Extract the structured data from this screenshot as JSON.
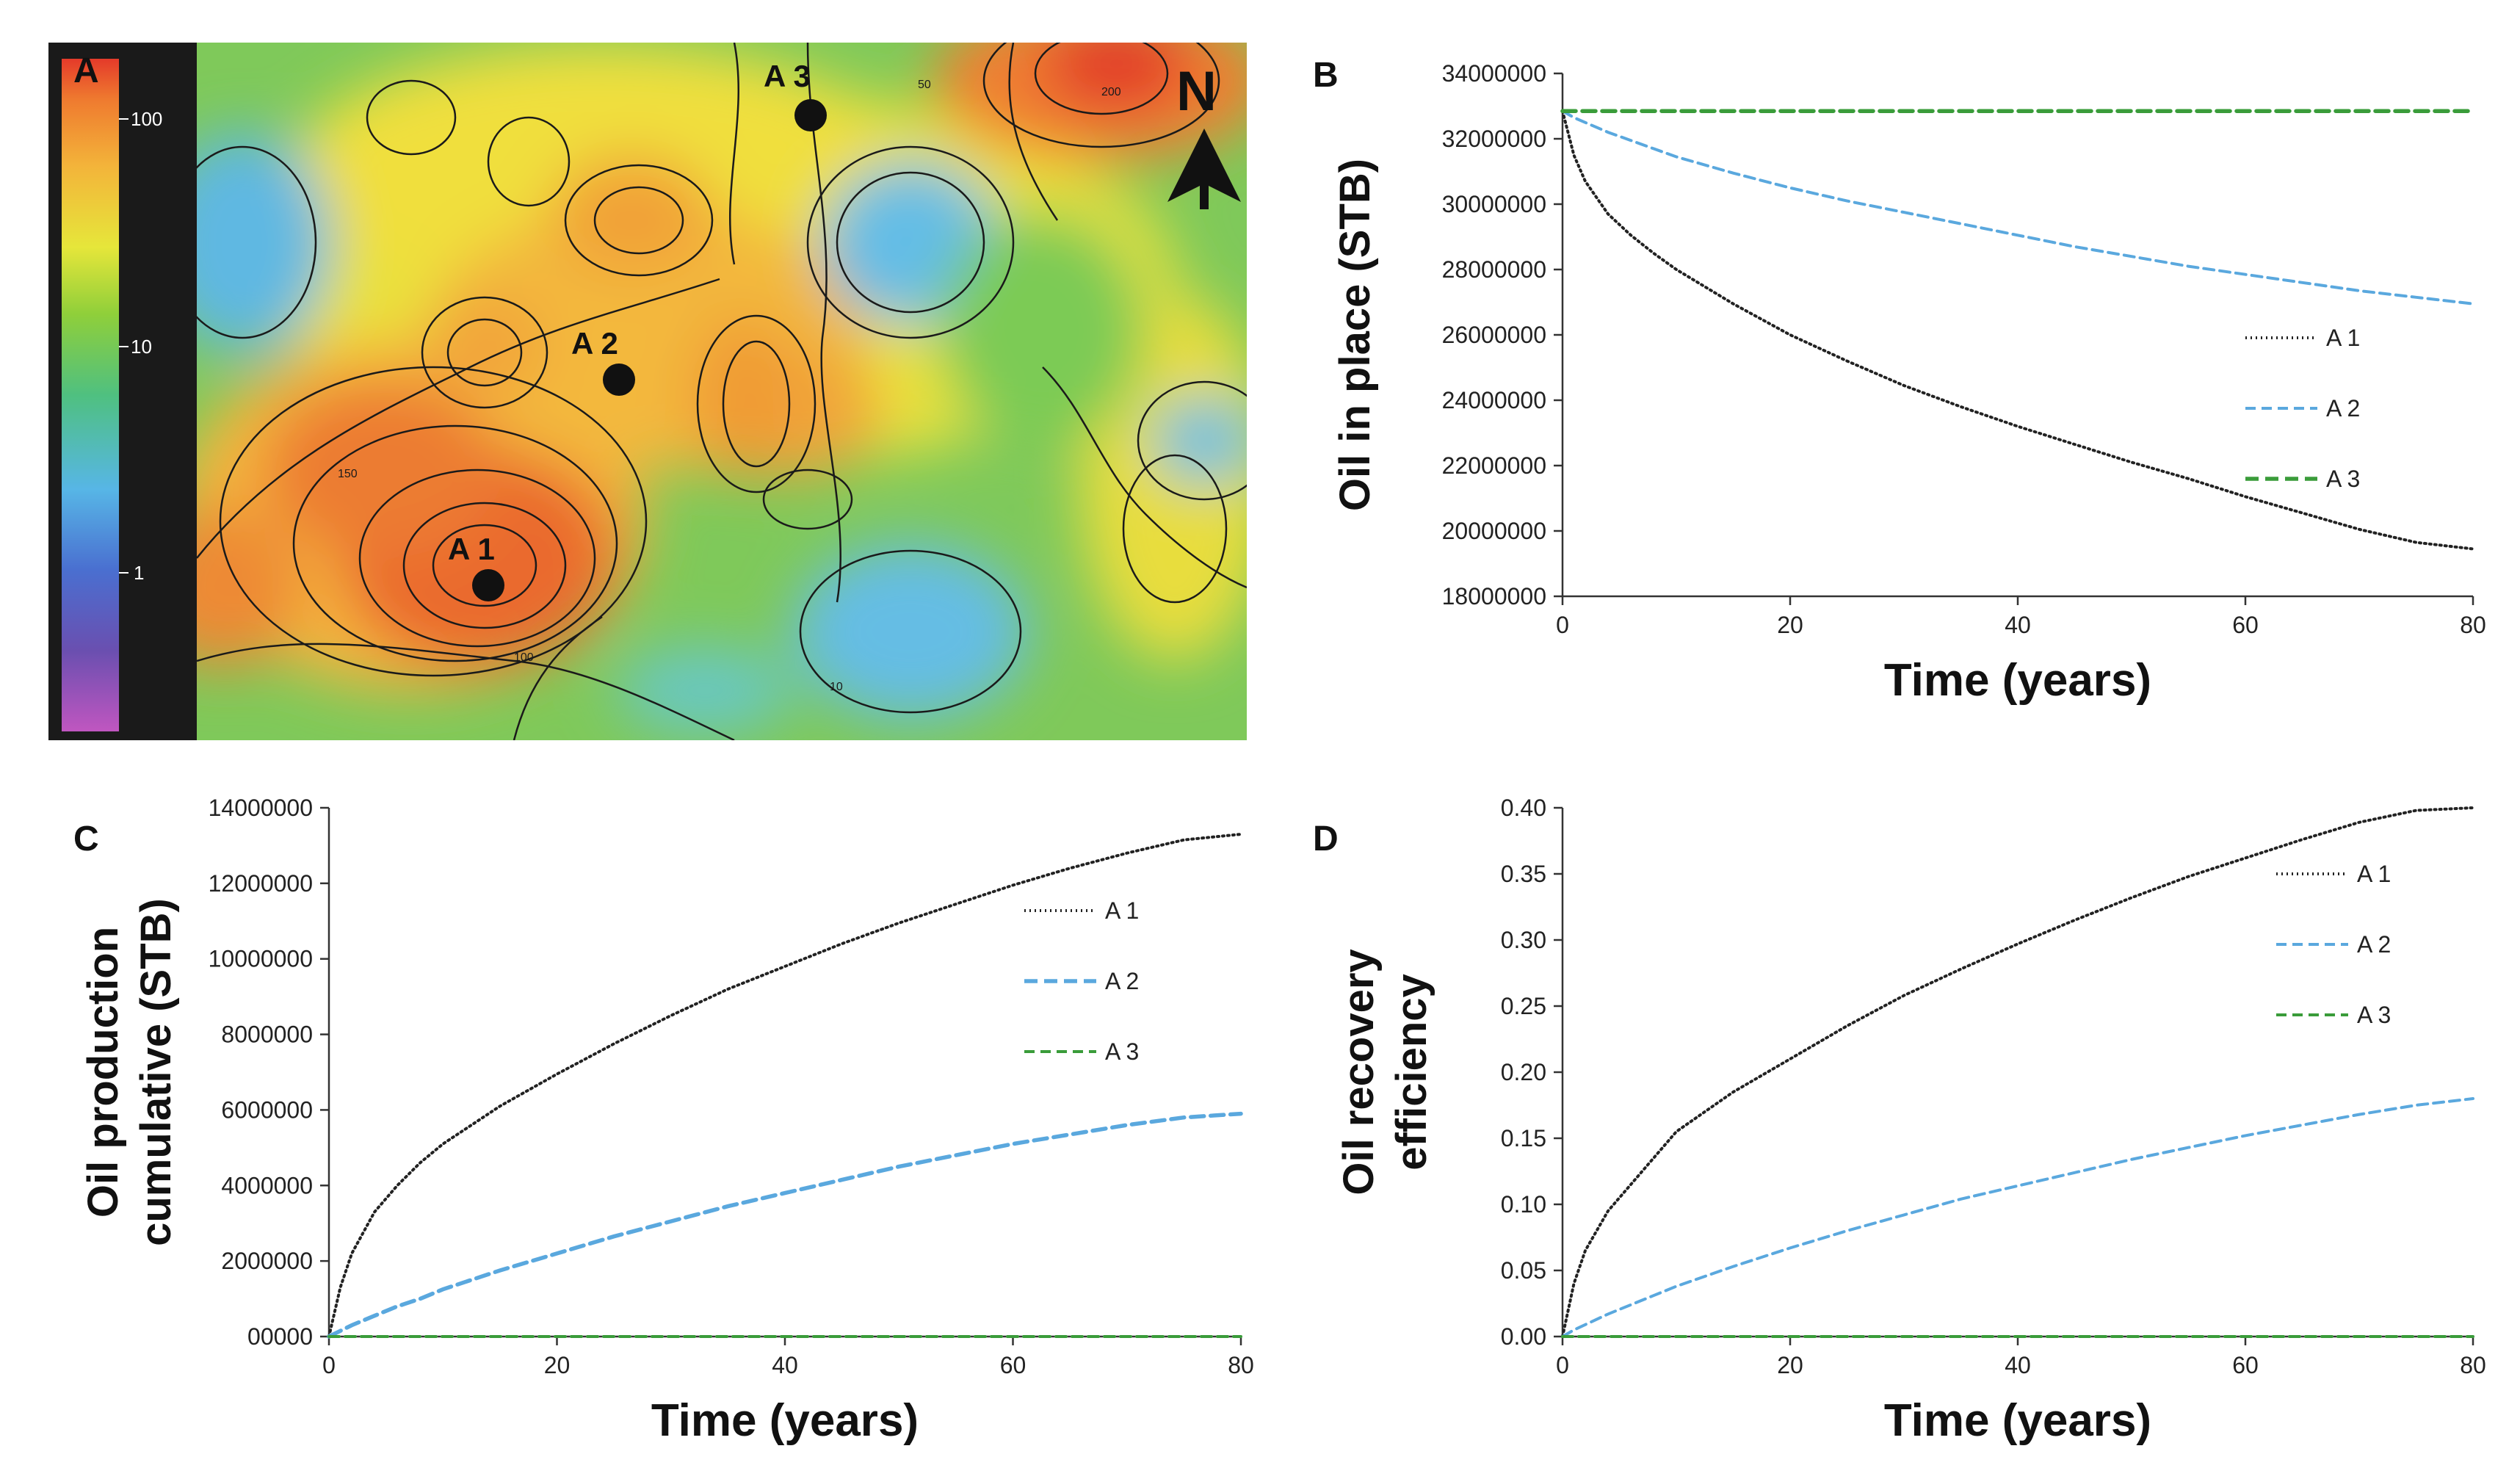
{
  "panels": {
    "a": {
      "letter": "A",
      "north_label": "N",
      "colorbar_ticks": [
        "100",
        "10",
        "1"
      ],
      "contour_labels": [
        "10",
        "50",
        "100",
        "150",
        "200"
      ],
      "wells": [
        {
          "label": "A 1"
        },
        {
          "label": "A 2"
        },
        {
          "label": "A 3"
        }
      ],
      "colors": {
        "frame": "#1a1a1a",
        "well": "#111111"
      }
    }
  },
  "chart_data": [
    {
      "panel": "B",
      "type": "line",
      "xlabel": "Time (years)",
      "ylabel": "Oil in place (STB)",
      "xlim": [
        0,
        80
      ],
      "ylim": [
        18000000,
        34000000
      ],
      "xticks": [
        "0",
        "20",
        "40",
        "60",
        "80"
      ],
      "yticks": [
        "18000000",
        "20000000",
        "22000000",
        "24000000",
        "26000000",
        "28000000",
        "30000000",
        "32000000",
        "34000000"
      ],
      "legend_position": "right",
      "x": [
        0,
        1,
        2,
        4,
        6,
        8,
        10,
        15,
        20,
        25,
        30,
        35,
        40,
        45,
        50,
        55,
        60,
        65,
        70,
        75,
        80
      ],
      "series": [
        {
          "name": "A 1",
          "style": "dotted",
          "color": "#222222",
          "values": [
            32850000,
            31500000,
            30700000,
            29700000,
            29050000,
            28500000,
            28000000,
            26950000,
            26000000,
            25200000,
            24450000,
            23800000,
            23200000,
            22650000,
            22100000,
            21600000,
            21050000,
            20550000,
            20050000,
            19650000,
            19450000
          ]
        },
        {
          "name": "A 2",
          "style": "dashed",
          "color": "#5aa8de",
          "values": [
            32850000,
            32650000,
            32500000,
            32200000,
            31950000,
            31700000,
            31450000,
            30950000,
            30500000,
            30100000,
            29750000,
            29400000,
            29050000,
            28700000,
            28400000,
            28100000,
            27850000,
            27600000,
            27350000,
            27150000,
            26950000
          ]
        },
        {
          "name": "A 3",
          "style": "dashed-thick",
          "color": "#3a9c3a",
          "values": [
            32850000,
            32850000,
            32850000,
            32850000,
            32850000,
            32850000,
            32850000,
            32850000,
            32850000,
            32850000,
            32850000,
            32850000,
            32850000,
            32850000,
            32850000,
            32850000,
            32850000,
            32850000,
            32850000,
            32850000,
            32850000
          ]
        }
      ]
    },
    {
      "panel": "C",
      "type": "line",
      "xlabel": "Time (years)",
      "ylabel_lines": [
        "Oil production",
        "cumulative (STB)"
      ],
      "xlim": [
        0,
        80
      ],
      "ylim": [
        0,
        14000000
      ],
      "xticks": [
        "0",
        "20",
        "40",
        "60",
        "80"
      ],
      "yticks": [
        "00000",
        "2000000",
        "4000000",
        "6000000",
        "8000000",
        "10000000",
        "12000000",
        "14000000"
      ],
      "legend_position": "right",
      "x": [
        0,
        1,
        2,
        4,
        6,
        8,
        10,
        15,
        20,
        25,
        30,
        35,
        40,
        45,
        50,
        55,
        60,
        65,
        70,
        75,
        80
      ],
      "series": [
        {
          "name": "A 1",
          "style": "dotted",
          "color": "#222222",
          "values": [
            0,
            1300000,
            2200000,
            3300000,
            4000000,
            4600000,
            5100000,
            6100000,
            6950000,
            7750000,
            8500000,
            9200000,
            9800000,
            10400000,
            10950000,
            11450000,
            11950000,
            12400000,
            12800000,
            13150000,
            13300000
          ]
        },
        {
          "name": "A 2",
          "style": "dashed-thick",
          "color": "#5aa8de",
          "values": [
            0,
            150000,
            300000,
            550000,
            800000,
            1000000,
            1250000,
            1750000,
            2200000,
            2650000,
            3050000,
            3450000,
            3800000,
            4150000,
            4500000,
            4800000,
            5100000,
            5350000,
            5600000,
            5800000,
            5900000
          ]
        },
        {
          "name": "A 3",
          "style": "dashed",
          "color": "#3a9c3a",
          "values": [
            0,
            0,
            0,
            0,
            0,
            0,
            0,
            0,
            0,
            0,
            0,
            0,
            0,
            0,
            0,
            0,
            0,
            0,
            0,
            0,
            0
          ]
        }
      ]
    },
    {
      "panel": "D",
      "type": "line",
      "xlabel": "Time (years)",
      "ylabel_lines": [
        "Oil recovery",
        "efficiency"
      ],
      "xlim": [
        0,
        80
      ],
      "ylim": [
        0,
        0.4
      ],
      "xticks": [
        "0",
        "20",
        "40",
        "60",
        "80"
      ],
      "yticks": [
        "0.00",
        "0.05",
        "0.10",
        "0.15",
        "0.20",
        "0.25",
        "0.30",
        "0.35",
        "0.40"
      ],
      "legend_position": "right",
      "x": [
        0,
        1,
        2,
        4,
        6,
        8,
        10,
        15,
        20,
        25,
        30,
        35,
        40,
        45,
        50,
        55,
        60,
        65,
        70,
        75,
        80
      ],
      "series": [
        {
          "name": "A 1",
          "style": "dotted",
          "color": "#222222",
          "values": [
            0,
            0.04,
            0.065,
            0.095,
            0.115,
            0.135,
            0.155,
            0.185,
            0.21,
            0.235,
            0.258,
            0.278,
            0.297,
            0.315,
            0.332,
            0.348,
            0.362,
            0.376,
            0.389,
            0.398,
            0.4
          ]
        },
        {
          "name": "A 2",
          "style": "dashed",
          "color": "#5aa8de",
          "values": [
            0,
            0.005,
            0.009,
            0.017,
            0.024,
            0.031,
            0.038,
            0.053,
            0.067,
            0.08,
            0.092,
            0.104,
            0.114,
            0.124,
            0.134,
            0.143,
            0.152,
            0.16,
            0.168,
            0.175,
            0.18
          ]
        },
        {
          "name": "A 3",
          "style": "dashed",
          "color": "#3a9c3a",
          "values": [
            0,
            0,
            0,
            0,
            0,
            0,
            0,
            0,
            0,
            0,
            0,
            0,
            0,
            0,
            0,
            0,
            0,
            0,
            0,
            0,
            0
          ]
        }
      ]
    }
  ]
}
